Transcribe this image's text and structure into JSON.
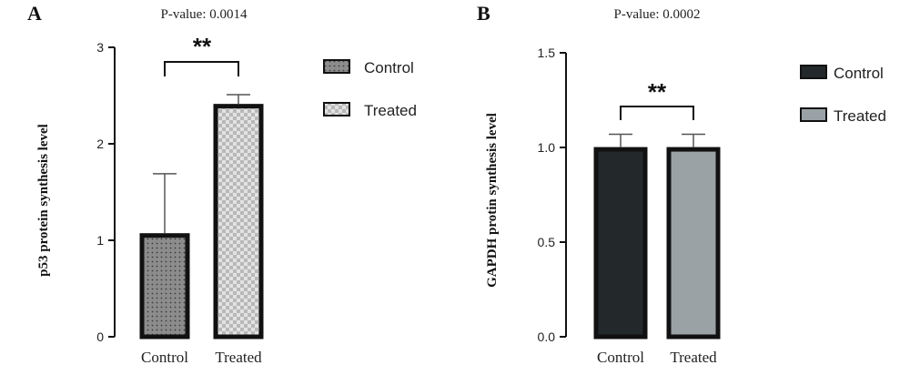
{
  "chart_data": [
    {
      "panel": "A",
      "type": "bar",
      "title": "P-value: 0.0014",
      "ylabel": "p53 protein synthesis level",
      "xlabel": "",
      "categories": [
        "Control",
        "Treated"
      ],
      "values": [
        1.05,
        2.39
      ],
      "errors": [
        0.64,
        0.12
      ],
      "ylim": [
        0,
        3
      ],
      "yticks": [
        "0",
        "1",
        "2",
        "3"
      ],
      "ytick_values": [
        0,
        1,
        2,
        3
      ],
      "significance": "**",
      "grid": false,
      "legend_position": "right",
      "legend": [
        "Control",
        "Treated"
      ],
      "fills": [
        "dots-gray",
        "checker-light"
      ],
      "colors": {
        "control": "#8a8a8a",
        "treated": "#d8d8d8"
      }
    },
    {
      "panel": "B",
      "type": "bar",
      "title": "P-value: 0.0002",
      "ylabel": "GAPDH protin synthesis level",
      "xlabel": "",
      "categories": [
        "Control",
        "Treated"
      ],
      "values": [
        0.99,
        0.99
      ],
      "errors": [
        0.08,
        0.08
      ],
      "ylim": [
        0,
        1.5
      ],
      "yticks": [
        "0.0",
        "0.5",
        "1.0",
        "1.5"
      ],
      "ytick_values": [
        0,
        0.5,
        1.0,
        1.5
      ],
      "significance": "**",
      "grid": false,
      "legend_position": "right",
      "legend": [
        "Control",
        "Treated"
      ],
      "colors": {
        "control": "#23282b",
        "treated": "#9aa2a6"
      }
    }
  ]
}
